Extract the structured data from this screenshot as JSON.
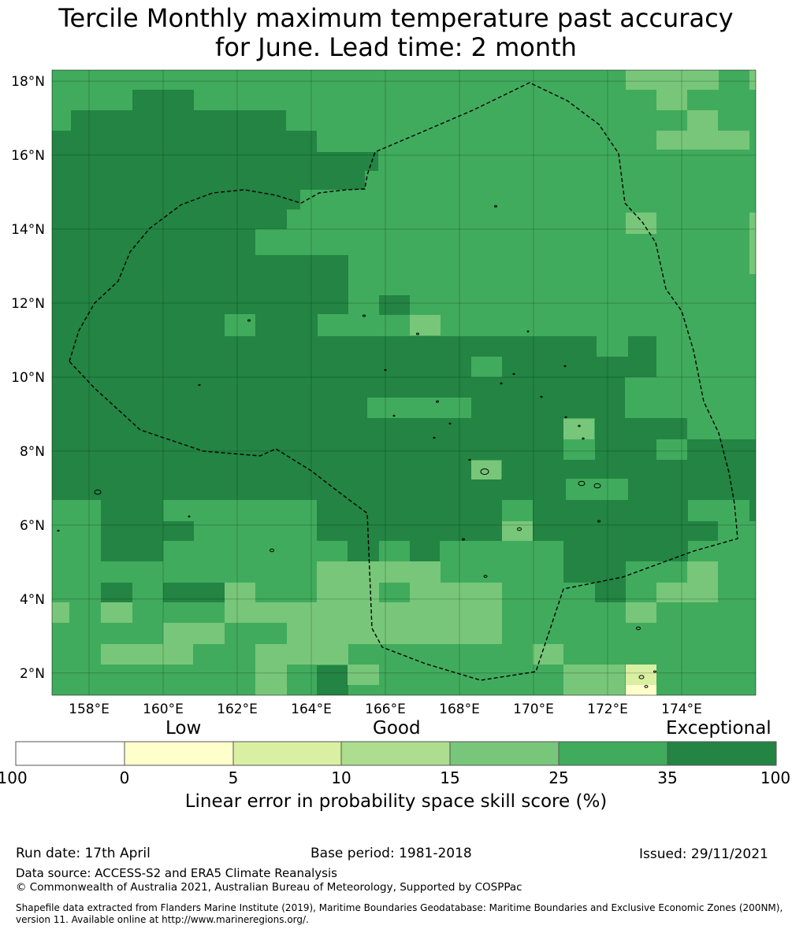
{
  "title_line1": "Tercile Monthly maximum temperature past accuracy",
  "title_line2": "for June. Lead time: 2 month",
  "map": {
    "lon_labels": [
      "158°E",
      "160°E",
      "162°E",
      "164°E",
      "166°E",
      "168°E",
      "170°E",
      "172°E",
      "174°E"
    ],
    "lat_labels": [
      "18°N",
      "16°N",
      "14°N",
      "12°N",
      "10°N",
      "8°N",
      "6°N",
      "4°N",
      "2°N"
    ],
    "lon_range": [
      157,
      176
    ],
    "lat_range": [
      1.4,
      18.3
    ],
    "grid_step_deg": 0.8333,
    "colors": {
      "c0": "#ffffcc",
      "c5": "#d9f0a3",
      "c15": "#78c679",
      "c25": "#41ab5d",
      "c35": "#238443"
    },
    "eez_boundary": "dashed-black"
  },
  "colorbar": {
    "category_labels": [
      "Low",
      "Good",
      "Exceptional"
    ],
    "ticks": [
      "-100",
      "0",
      "5",
      "10",
      "15",
      "25",
      "35",
      "100"
    ],
    "colors": [
      "#ffffff",
      "#ffffcc",
      "#d9f0a3",
      "#addd8e",
      "#78c679",
      "#41ab5d",
      "#238443"
    ],
    "title": "Linear error in probability space skill score (%)"
  },
  "footer": {
    "run_date": "Run date: 17th April",
    "base_period": "Base period: 1981-2018",
    "issued": "Issued: 29/11/2021",
    "data_source": "Data source: ACCESS-S2 and ERA5 Climate Reanalysis",
    "copyright": "© Commonwealth of Australia 2021, Australian Bureau of Meteorology, Supported by COSPPac",
    "shapefile_line1": "Shapefile data extracted from Flanders Marine Institute (2019), Maritime Boundaries Geodatabase: Maritime Boundaries and Exclusive Economic Zones (200NM),",
    "shapefile_line2": "version 11. Available online at http://www.marineregions.org/."
  }
}
